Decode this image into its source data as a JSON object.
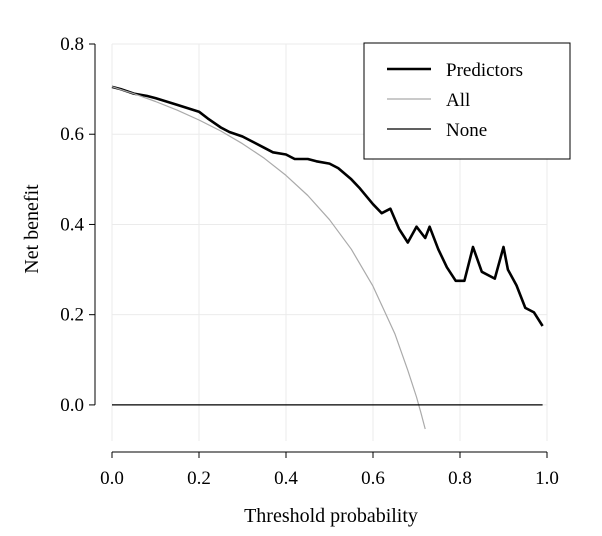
{
  "chart_data": {
    "type": "line",
    "title": "",
    "xlabel": "Threshold probability",
    "ylabel": "Net benefit",
    "xlim": [
      0.0,
      1.0
    ],
    "ylim": [
      -0.08,
      0.8
    ],
    "xticks": [
      0.0,
      0.2,
      0.4,
      0.6,
      0.8,
      1.0
    ],
    "yticks": [
      0.0,
      0.2,
      0.4,
      0.6,
      0.8
    ],
    "xtick_labels": [
      "0.0",
      "0.2",
      "0.4",
      "0.6",
      "0.8",
      "1.0"
    ],
    "ytick_labels": [
      "0.0",
      "0.2",
      "0.4",
      "0.6",
      "0.8"
    ],
    "grid": true,
    "legend_position": "top-right",
    "series": [
      {
        "name": "Predictors",
        "color": "#000000",
        "x": [
          0.0,
          0.02,
          0.05,
          0.08,
          0.1,
          0.15,
          0.2,
          0.22,
          0.25,
          0.27,
          0.3,
          0.32,
          0.35,
          0.37,
          0.4,
          0.42,
          0.45,
          0.47,
          0.5,
          0.52,
          0.55,
          0.57,
          0.6,
          0.62,
          0.64,
          0.66,
          0.68,
          0.7,
          0.72,
          0.73,
          0.75,
          0.77,
          0.79,
          0.81,
          0.83,
          0.85,
          0.88,
          0.9,
          0.91,
          0.93,
          0.95,
          0.97,
          0.99
        ],
        "y": [
          0.705,
          0.7,
          0.69,
          0.685,
          0.68,
          0.665,
          0.65,
          0.635,
          0.615,
          0.605,
          0.595,
          0.585,
          0.57,
          0.56,
          0.555,
          0.545,
          0.545,
          0.54,
          0.535,
          0.525,
          0.5,
          0.48,
          0.445,
          0.425,
          0.435,
          0.39,
          0.36,
          0.395,
          0.37,
          0.395,
          0.345,
          0.305,
          0.275,
          0.275,
          0.35,
          0.295,
          0.28,
          0.35,
          0.3,
          0.265,
          0.215,
          0.205,
          0.175
        ]
      },
      {
        "name": "All",
        "color": "#aaaaaa",
        "x": [
          0.0,
          0.05,
          0.1,
          0.15,
          0.2,
          0.25,
          0.3,
          0.35,
          0.4,
          0.45,
          0.5,
          0.55,
          0.6,
          0.65,
          0.68,
          0.7,
          0.71,
          0.72
        ],
        "y": [
          0.7053,
          0.6898,
          0.6726,
          0.6533,
          0.6316,
          0.6071,
          0.579,
          0.5466,
          0.5088,
          0.4642,
          0.4106,
          0.3452,
          0.2632,
          0.158,
          0.0768,
          0.0175,
          -0.0164,
          -0.0533
        ]
      },
      {
        "name": "None",
        "color": "#000000",
        "x": [
          0.0,
          0.99
        ],
        "y": [
          0.0,
          0.0
        ]
      }
    ]
  }
}
